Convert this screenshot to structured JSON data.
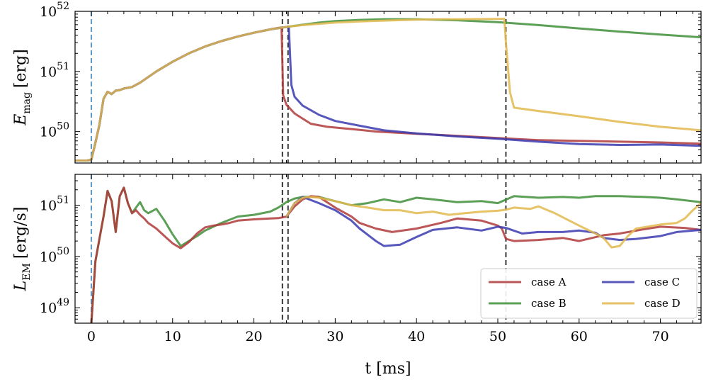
{
  "chart_data": [
    {
      "type": "line",
      "title": "",
      "xlabel": "t [ms]",
      "ylabel": "E_mag [erg]",
      "ylabel_parts": {
        "symbol": "E",
        "sub": "mag",
        "unit": "[erg]"
      },
      "yscale": "log",
      "xlim": [
        -2,
        75
      ],
      "ylim": [
        3e+49,
        1e+52
      ],
      "ytick_labels": [
        {
          "base": "10",
          "exp": "50"
        },
        {
          "base": "10",
          "exp": "51"
        },
        {
          "base": "10",
          "exp": "52"
        }
      ],
      "grid": false,
      "vlines": [
        {
          "x": 0,
          "style": "dashed",
          "color": "#4a8ec2"
        },
        {
          "x": 23.5,
          "style": "dashed",
          "color": "#222222"
        },
        {
          "x": 24.2,
          "style": "dashed",
          "color": "#222222"
        },
        {
          "x": 51,
          "style": "dashed",
          "color": "#222222"
        }
      ],
      "series": [
        {
          "name": "case A",
          "color": "#b03a3a",
          "x": [
            -2,
            -0.5,
            0,
            0.5,
            1,
            1.5,
            2,
            2.5,
            3,
            3.5,
            4,
            5,
            6,
            8,
            10,
            12,
            14,
            16,
            18,
            20,
            22,
            23,
            23.4,
            23.6,
            24,
            25,
            27,
            29,
            32,
            35,
            40,
            45,
            50,
            55,
            60,
            65,
            70,
            75
          ],
          "y": [
            3.3e+49,
            3.3e+49,
            3.4e+49,
            6.5e+49,
            1.3e+50,
            3.5e+50,
            4.6e+50,
            4.2e+50,
            4.8e+50,
            4.9e+50,
            5.2e+50,
            5.5e+50,
            6.5e+50,
            1e+51,
            1.45e+51,
            2e+51,
            2.6e+51,
            3.2e+51,
            3.8e+51,
            4.4e+51,
            5e+51,
            5.3e+51,
            5.4e+51,
            4e+50,
            2.8e+50,
            2e+50,
            1.35e+50,
            1.2e+50,
            1.1e+50,
            1e+50,
            9.2e+49,
            8.5e+49,
            7.8e+49,
            7.2e+49,
            7e+49,
            6.8e+49,
            6.6e+49,
            6.3e+49
          ]
        },
        {
          "name": "case B",
          "color": "#3f8f3a",
          "x": [
            -2,
            -0.5,
            0,
            0.5,
            1,
            1.5,
            2,
            2.5,
            3,
            3.5,
            4,
            5,
            6,
            8,
            10,
            12,
            14,
            16,
            18,
            20,
            22,
            24,
            26,
            28,
            30,
            33,
            36,
            40,
            45,
            50,
            55,
            60,
            65,
            70,
            75
          ],
          "y": [
            3.3e+49,
            3.3e+49,
            3.4e+49,
            6.5e+49,
            1.3e+50,
            3.5e+50,
            4.6e+50,
            4.2e+50,
            4.8e+50,
            4.9e+50,
            5.2e+50,
            5.5e+50,
            6.5e+50,
            1e+51,
            1.45e+51,
            2e+51,
            2.6e+51,
            3.2e+51,
            3.8e+51,
            4.4e+51,
            5e+51,
            5.5e+51,
            6e+51,
            6.5e+51,
            6.9e+51,
            7.2e+51,
            7.4e+51,
            7.4e+51,
            7.1e+51,
            6.6e+51,
            5.9e+51,
            5.2e+51,
            4.6e+51,
            4.1e+51,
            3.7e+51
          ]
        },
        {
          "name": "case C",
          "color": "#3a3ab0",
          "x": [
            -2,
            -0.5,
            0,
            0.5,
            1,
            1.5,
            2,
            2.5,
            3,
            3.5,
            4,
            5,
            6,
            8,
            10,
            12,
            14,
            16,
            18,
            20,
            22,
            24,
            24.3,
            24.6,
            25,
            26,
            28,
            30,
            33,
            36,
            40,
            45,
            50,
            55,
            60,
            65,
            70,
            75
          ],
          "y": [
            3.3e+49,
            3.3e+49,
            3.4e+49,
            6.5e+49,
            1.3e+50,
            3.5e+50,
            4.6e+50,
            4.2e+50,
            4.8e+50,
            4.9e+50,
            5.2e+50,
            5.5e+50,
            6.5e+50,
            1e+51,
            1.45e+51,
            2e+51,
            2.6e+51,
            3.2e+51,
            3.8e+51,
            4.4e+51,
            5e+51,
            5.5e+51,
            5.6e+51,
            6e+50,
            3.8e+50,
            2.7e+50,
            1.9e+50,
            1.5e+50,
            1.25e+50,
            1.05e+50,
            9.3e+49,
            8.3e+49,
            7.6e+49,
            6.8e+49,
            6.2e+49,
            6e+49,
            6.1e+49,
            5.8e+49
          ]
        },
        {
          "name": "case D",
          "color": "#e3b84e",
          "x": [
            -2,
            -0.5,
            0,
            0.5,
            1,
            1.5,
            2,
            2.5,
            3,
            3.5,
            4,
            5,
            6,
            8,
            10,
            12,
            14,
            16,
            18,
            20,
            22,
            24,
            26,
            28,
            30,
            33,
            36,
            40,
            45,
            50,
            50.8,
            51,
            51.5,
            52,
            55,
            60,
            65,
            70,
            75
          ],
          "y": [
            3.3e+49,
            3.3e+49,
            3.4e+49,
            6.5e+49,
            1.3e+50,
            3.5e+50,
            4.6e+50,
            4.2e+50,
            4.8e+50,
            4.9e+50,
            5.2e+50,
            5.5e+50,
            6.5e+50,
            1e+51,
            1.45e+51,
            2e+51,
            2.6e+51,
            3.2e+51,
            3.8e+51,
            4.4e+51,
            5e+51,
            5.5e+51,
            5.9e+51,
            6.2e+51,
            6.5e+51,
            6.8e+51,
            7e+51,
            7.3e+51,
            7.4e+51,
            7.5e+51,
            7.5e+51,
            3e+51,
            4.5e+50,
            2.5e+50,
            2.2e+50,
            1.8e+50,
            1.45e+50,
            1.2e+50,
            1.05e+50
          ]
        }
      ]
    },
    {
      "type": "line",
      "title": "",
      "xlabel": "t [ms]",
      "ylabel": "L_EM [erg/s]",
      "ylabel_parts": {
        "symbol": "L",
        "sub": "EM",
        "unit": "[erg/s]"
      },
      "yscale": "log",
      "xlim": [
        -2,
        75
      ],
      "ylim": [
        5e+48,
        4e+51
      ],
      "xticks": [
        0,
        10,
        20,
        30,
        40,
        50,
        60,
        70
      ],
      "ytick_labels": [
        {
          "base": "10",
          "exp": "49"
        },
        {
          "base": "10",
          "exp": "50"
        },
        {
          "base": "10",
          "exp": "51"
        }
      ],
      "grid": false,
      "legend": {
        "placement": "lower-right",
        "columns": 2,
        "order": [
          "case A",
          "case C",
          "case B",
          "case D"
        ]
      },
      "vlines": [
        {
          "x": 0,
          "style": "dashed",
          "color": "#4a8ec2"
        },
        {
          "x": 23.5,
          "style": "dashed",
          "color": "#222222"
        },
        {
          "x": 24.2,
          "style": "dashed",
          "color": "#222222"
        },
        {
          "x": 51,
          "style": "dashed",
          "color": "#222222"
        }
      ],
      "series": [
        {
          "name": "case B",
          "color": "#3f8f3a",
          "x": [
            0,
            0.5,
            1,
            1.5,
            2,
            2.5,
            3,
            3.5,
            4,
            4.5,
            5,
            5.5,
            6,
            6.5,
            7,
            8,
            9,
            10,
            11,
            12,
            13,
            14,
            15,
            16,
            17,
            18,
            20,
            22,
            23,
            24,
            25,
            26,
            28,
            30,
            32,
            34,
            36,
            38,
            40,
            42,
            45,
            48,
            50,
            52,
            55,
            58,
            60,
            62,
            65,
            68,
            70,
            72,
            75
          ],
          "y": [
            5e+48,
            8e+49,
            2.2e+50,
            6e+50,
            1.9e+51,
            1.2e+51,
            3e+50,
            1.5e+51,
            2.2e+51,
            1.1e+51,
            7e+50,
            9e+50,
            1.15e+51,
            8e+50,
            7e+50,
            8.5e+50,
            5e+50,
            2.7e+50,
            1.6e+50,
            2e+50,
            2.5e+50,
            3.2e+50,
            3.8e+50,
            4.5e+50,
            5.2e+50,
            6e+50,
            6.5e+50,
            7.5e+50,
            9e+50,
            1.15e+51,
            1.35e+51,
            1.45e+51,
            1.45e+51,
            1.2e+51,
            1e+51,
            1.1e+51,
            1.3e+51,
            1.15e+51,
            1.4e+51,
            1.3e+51,
            1.15e+51,
            1.2e+51,
            1.1e+51,
            1.5e+51,
            1.4e+51,
            1.45e+51,
            1.4e+51,
            1.5e+51,
            1.5e+51,
            1.45e+51,
            1.4e+51,
            1.3e+51,
            1.15e+51
          ]
        },
        {
          "name": "case A",
          "color": "#b03a3a",
          "x": [
            0,
            0.5,
            1,
            1.5,
            2,
            2.5,
            3,
            3.5,
            4,
            4.5,
            5,
            5.5,
            6,
            6.5,
            7,
            8,
            9,
            10,
            11,
            12,
            13,
            14,
            15,
            16,
            17,
            18,
            20,
            22,
            23,
            24,
            25,
            26,
            27,
            28,
            30,
            32,
            33,
            35,
            37,
            40,
            43,
            45,
            48,
            50,
            50.5,
            51,
            52,
            55,
            58,
            60,
            63,
            65,
            68,
            70,
            73,
            75
          ],
          "y": [
            5e+48,
            8e+49,
            2.2e+50,
            6e+50,
            1.9e+51,
            1.2e+51,
            3e+50,
            1.5e+51,
            2.2e+51,
            1.1e+51,
            7e+50,
            8e+50,
            6.5e+50,
            5.5e+50,
            4.5e+50,
            3.5e+50,
            2.5e+50,
            1.8e+50,
            1.45e+50,
            1.9e+50,
            2.8e+50,
            3.7e+50,
            4e+50,
            4.2e+50,
            4.5e+50,
            5e+50,
            5.3e+50,
            5.5e+50,
            5.6e+50,
            6e+50,
            9.5e+50,
            1.3e+51,
            1.5e+51,
            1.45e+51,
            9e+50,
            6e+50,
            4.5e+50,
            3.5e+50,
            3e+50,
            3.5e+50,
            4.5e+50,
            5.5e+50,
            5e+50,
            4e+50,
            3.5e+50,
            2.2e+50,
            2e+50,
            2.1e+50,
            2.3e+50,
            2e+50,
            2.6e+50,
            2.8e+50,
            3.4e+50,
            3.8e+50,
            3.6e+50,
            3.3e+50
          ]
        },
        {
          "name": "case C",
          "color": "#3a3ab0",
          "x": [
            24,
            25,
            26,
            28,
            30,
            32,
            33,
            35,
            36,
            38,
            40,
            42,
            45,
            48,
            50,
            51,
            53,
            55,
            58,
            60,
            62,
            63,
            65,
            67,
            70,
            72,
            75
          ],
          "y": [
            6e+50,
            1.1e+51,
            1.45e+51,
            1.1e+51,
            8e+50,
            5e+50,
            3.5e+50,
            2e+50,
            1.6e+50,
            1.7e+50,
            2.4e+50,
            3.3e+50,
            3.7e+50,
            3.2e+50,
            3.8e+50,
            3.6e+50,
            2.8e+50,
            3e+50,
            3e+50,
            3.2e+50,
            2.9e+50,
            2.3e+50,
            2.1e+50,
            2.2e+50,
            2.5e+50,
            3e+50,
            3.3e+50
          ]
        },
        {
          "name": "case D",
          "color": "#e3b84e",
          "x": [
            24,
            25,
            26,
            27,
            28,
            30,
            32,
            34,
            36,
            38,
            40,
            42,
            44,
            46,
            48,
            50,
            51,
            52,
            54,
            55,
            57,
            60,
            62,
            63,
            64,
            65,
            66,
            67,
            70,
            72,
            73,
            74,
            75
          ],
          "y": [
            6e+50,
            1.1e+51,
            1.4e+51,
            1.45e+51,
            1.4e+51,
            1.2e+51,
            1e+51,
            9e+50,
            8e+50,
            8e+50,
            7e+50,
            7.5e+50,
            6.5e+50,
            7e+50,
            7.5e+50,
            7.8e+50,
            8.2e+50,
            9e+50,
            8.5e+50,
            9.5e+50,
            7e+50,
            4e+50,
            2.8e+50,
            2.3e+50,
            1.5e+50,
            1.6e+50,
            2.5e+50,
            3.5e+50,
            4.2e+50,
            4.5e+50,
            5.5e+50,
            8e+50,
            1.1e+51
          ]
        }
      ]
    }
  ]
}
